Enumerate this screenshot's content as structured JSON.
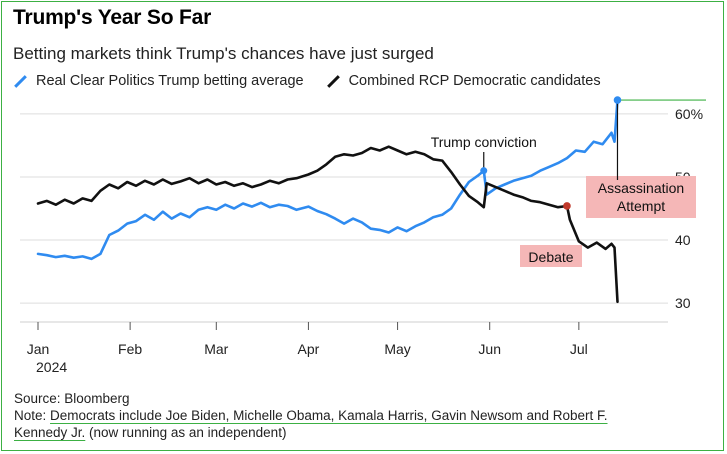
{
  "header": {
    "title": "Trump's Year So Far",
    "subtitle": "Betting markets think Trump's chances have just surged"
  },
  "footer": {
    "source": "Source: Bloomberg",
    "note_prefix": "Note: ",
    "note_underlined_1": "Democrats include Joe Biden, Michelle Obama, Kamala Harris, Gavin Newsom and Robert F.",
    "note_underlined_2": "Kennedy Jr.",
    "note_suffix": " (now running as an independent)"
  },
  "colors": {
    "trump": "#2f8bf0",
    "dem": "#111111",
    "grid": "#dedede",
    "highlight": "#f5b7b7",
    "marker": "#c0392b",
    "frame": "#3cb043"
  },
  "chart_data": {
    "type": "line",
    "x_is_date": true,
    "xlim": [
      "2024-01-01",
      "2024-07-31"
    ],
    "ylim": [
      27,
      63
    ],
    "y_ticks": [
      60,
      50,
      40,
      30
    ],
    "y_tick_labels": [
      "60%",
      "50",
      "40",
      "30"
    ],
    "x_ticks": [
      {
        "date": "2024-01-01",
        "label": "Jan",
        "sublabel": "2024"
      },
      {
        "date": "2024-02-01",
        "label": "Feb"
      },
      {
        "date": "2024-03-01",
        "label": "Mar"
      },
      {
        "date": "2024-04-01",
        "label": "Apr"
      },
      {
        "date": "2024-05-01",
        "label": "May"
      },
      {
        "date": "2024-06-01",
        "label": "Jun"
      },
      {
        "date": "2024-07-01",
        "label": "Jul"
      }
    ],
    "grid": true,
    "legend_position": "top-left",
    "series": [
      {
        "name": "Real Clear Politics Trump betting average",
        "color_key": "trump",
        "points": [
          [
            "2024-01-01",
            37.8
          ],
          [
            "2024-01-04",
            37.6
          ],
          [
            "2024-01-07",
            37.3
          ],
          [
            "2024-01-10",
            37.5
          ],
          [
            "2024-01-13",
            37.2
          ],
          [
            "2024-01-16",
            37.4
          ],
          [
            "2024-01-19",
            37.0
          ],
          [
            "2024-01-22",
            37.8
          ],
          [
            "2024-01-25",
            40.8
          ],
          [
            "2024-01-28",
            41.5
          ],
          [
            "2024-01-31",
            42.6
          ],
          [
            "2024-02-03",
            43.0
          ],
          [
            "2024-02-06",
            44.0
          ],
          [
            "2024-02-09",
            43.2
          ],
          [
            "2024-02-12",
            44.5
          ],
          [
            "2024-02-15",
            43.4
          ],
          [
            "2024-02-18",
            44.2
          ],
          [
            "2024-02-21",
            43.6
          ],
          [
            "2024-02-24",
            44.8
          ],
          [
            "2024-02-27",
            45.2
          ],
          [
            "2024-03-01",
            44.8
          ],
          [
            "2024-03-04",
            45.6
          ],
          [
            "2024-03-07",
            45.0
          ],
          [
            "2024-03-10",
            45.8
          ],
          [
            "2024-03-13",
            45.3
          ],
          [
            "2024-03-16",
            45.9
          ],
          [
            "2024-03-19",
            45.2
          ],
          [
            "2024-03-22",
            45.6
          ],
          [
            "2024-03-25",
            45.4
          ],
          [
            "2024-03-28",
            44.8
          ],
          [
            "2024-04-01",
            45.3
          ],
          [
            "2024-04-04",
            44.6
          ],
          [
            "2024-04-07",
            44.1
          ],
          [
            "2024-04-10",
            43.4
          ],
          [
            "2024-04-13",
            42.6
          ],
          [
            "2024-04-16",
            43.4
          ],
          [
            "2024-04-19",
            42.8
          ],
          [
            "2024-04-22",
            41.8
          ],
          [
            "2024-04-25",
            41.6
          ],
          [
            "2024-04-28",
            41.2
          ],
          [
            "2024-05-01",
            42.0
          ],
          [
            "2024-05-04",
            41.4
          ],
          [
            "2024-05-07",
            42.2
          ],
          [
            "2024-05-10",
            42.8
          ],
          [
            "2024-05-13",
            43.6
          ],
          [
            "2024-05-16",
            44.0
          ],
          [
            "2024-05-19",
            45.0
          ],
          [
            "2024-05-22",
            47.2
          ],
          [
            "2024-05-25",
            49.2
          ],
          [
            "2024-05-28",
            50.2
          ],
          [
            "2024-05-30",
            51.0
          ],
          [
            "2024-05-31",
            47.2
          ],
          [
            "2024-06-03",
            48.2
          ],
          [
            "2024-06-06",
            48.8
          ],
          [
            "2024-06-09",
            49.4
          ],
          [
            "2024-06-12",
            49.8
          ],
          [
            "2024-06-15",
            50.2
          ],
          [
            "2024-06-18",
            51.0
          ],
          [
            "2024-06-21",
            51.6
          ],
          [
            "2024-06-24",
            52.2
          ],
          [
            "2024-06-27",
            53.0
          ],
          [
            "2024-06-30",
            54.2
          ],
          [
            "2024-07-03",
            54.0
          ],
          [
            "2024-07-06",
            55.6
          ],
          [
            "2024-07-09",
            55.2
          ],
          [
            "2024-07-12",
            57.0
          ],
          [
            "2024-07-13",
            55.6
          ],
          [
            "2024-07-14",
            62.2
          ]
        ]
      },
      {
        "name": "Combined RCP Democratic candidates",
        "color_key": "dem",
        "points": [
          [
            "2024-01-01",
            45.8
          ],
          [
            "2024-01-04",
            46.2
          ],
          [
            "2024-01-07",
            45.6
          ],
          [
            "2024-01-10",
            46.4
          ],
          [
            "2024-01-13",
            45.8
          ],
          [
            "2024-01-16",
            46.6
          ],
          [
            "2024-01-19",
            46.2
          ],
          [
            "2024-01-22",
            47.8
          ],
          [
            "2024-01-25",
            48.8
          ],
          [
            "2024-01-28",
            48.2
          ],
          [
            "2024-01-31",
            49.2
          ],
          [
            "2024-02-03",
            48.6
          ],
          [
            "2024-02-06",
            49.4
          ],
          [
            "2024-02-09",
            48.8
          ],
          [
            "2024-02-12",
            49.6
          ],
          [
            "2024-02-15",
            48.9
          ],
          [
            "2024-02-18",
            49.3
          ],
          [
            "2024-02-21",
            49.8
          ],
          [
            "2024-02-24",
            49.0
          ],
          [
            "2024-02-27",
            49.6
          ],
          [
            "2024-03-01",
            48.8
          ],
          [
            "2024-03-04",
            49.2
          ],
          [
            "2024-03-07",
            48.6
          ],
          [
            "2024-03-10",
            49.0
          ],
          [
            "2024-03-13",
            48.4
          ],
          [
            "2024-03-16",
            48.8
          ],
          [
            "2024-03-19",
            49.4
          ],
          [
            "2024-03-22",
            49.0
          ],
          [
            "2024-03-25",
            49.6
          ],
          [
            "2024-03-28",
            49.8
          ],
          [
            "2024-04-01",
            50.4
          ],
          [
            "2024-04-04",
            51.0
          ],
          [
            "2024-04-07",
            52.0
          ],
          [
            "2024-04-10",
            53.2
          ],
          [
            "2024-04-13",
            53.6
          ],
          [
            "2024-04-16",
            53.4
          ],
          [
            "2024-04-19",
            53.8
          ],
          [
            "2024-04-22",
            54.6
          ],
          [
            "2024-04-25",
            54.2
          ],
          [
            "2024-04-28",
            54.8
          ],
          [
            "2024-05-01",
            54.2
          ],
          [
            "2024-05-04",
            53.6
          ],
          [
            "2024-05-07",
            54.0
          ],
          [
            "2024-05-10",
            53.6
          ],
          [
            "2024-05-13",
            52.8
          ],
          [
            "2024-05-16",
            52.6
          ],
          [
            "2024-05-19",
            50.8
          ],
          [
            "2024-05-22",
            48.8
          ],
          [
            "2024-05-25",
            47.0
          ],
          [
            "2024-05-28",
            46.0
          ],
          [
            "2024-05-30",
            45.2
          ],
          [
            "2024-05-31",
            49.0
          ],
          [
            "2024-06-03",
            48.4
          ],
          [
            "2024-06-06",
            47.8
          ],
          [
            "2024-06-09",
            47.2
          ],
          [
            "2024-06-12",
            46.8
          ],
          [
            "2024-06-15",
            46.2
          ],
          [
            "2024-06-18",
            46.0
          ],
          [
            "2024-06-21",
            45.6
          ],
          [
            "2024-06-24",
            45.2
          ],
          [
            "2024-06-27",
            45.4
          ],
          [
            "2024-06-28",
            43.2
          ],
          [
            "2024-07-01",
            39.8
          ],
          [
            "2024-07-04",
            38.8
          ],
          [
            "2024-07-07",
            39.6
          ],
          [
            "2024-07-10",
            38.6
          ],
          [
            "2024-07-12",
            39.4
          ],
          [
            "2024-07-13",
            38.8
          ],
          [
            "2024-07-14",
            30.2
          ]
        ]
      }
    ],
    "annotations": [
      {
        "id": "trump-conviction",
        "text": "Trump conviction",
        "date": "2024-05-30",
        "value": 51.0,
        "series_key": "trump",
        "boxed": false
      },
      {
        "id": "debate",
        "text": "Debate",
        "date": "2024-06-27",
        "value": 45.4,
        "series_key": "dem",
        "boxed": true
      },
      {
        "id": "assassination",
        "text_lines": [
          "Assassination",
          "Attempt"
        ],
        "date": "2024-07-14",
        "value": 62.2,
        "series_key": "trump",
        "boxed": true
      }
    ]
  }
}
